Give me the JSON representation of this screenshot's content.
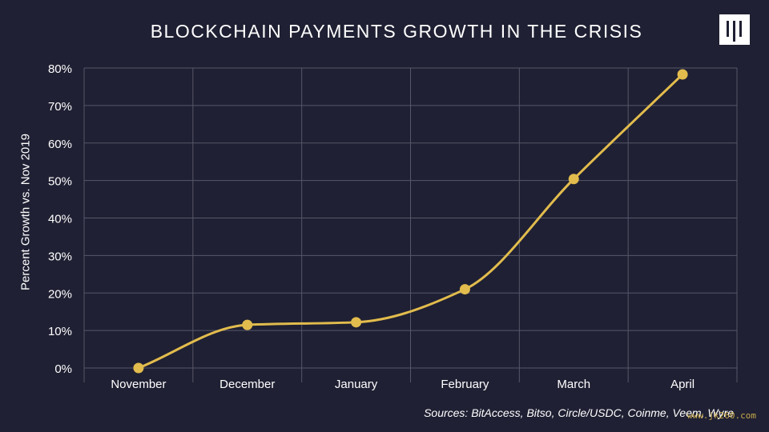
{
  "title": "BLOCKCHAIN PAYMENTS GROWTH IN THE CRISIS",
  "logo": {
    "icon": "publisher-logo-icon"
  },
  "source": "Sources: BitAccess, Bitso, Circle/USDC, Coinme, Veem, Wyre",
  "watermark": "www.jk260.com",
  "colors": {
    "background": "#1f2033",
    "line": "#e2bc4d",
    "grid": "#565768",
    "text": "#ffffff"
  },
  "chart_data": {
    "type": "line",
    "title": "BLOCKCHAIN PAYMENTS GROWTH IN THE CRISIS",
    "xlabel": "",
    "ylabel": "Percent Growth vs. Nov 2019",
    "categories": [
      "November",
      "December",
      "January",
      "February",
      "March",
      "April"
    ],
    "series": [
      {
        "values": [
          0,
          11.5,
          12.2,
          21,
          50.4,
          78.3
        ]
      }
    ],
    "ylim": [
      0,
      80
    ],
    "yticks": [
      "0%",
      "10%",
      "20%",
      "30%",
      "40%",
      "50%",
      "60%",
      "70%",
      "80%"
    ],
    "grid": true,
    "smooth": true,
    "legend": "none"
  }
}
